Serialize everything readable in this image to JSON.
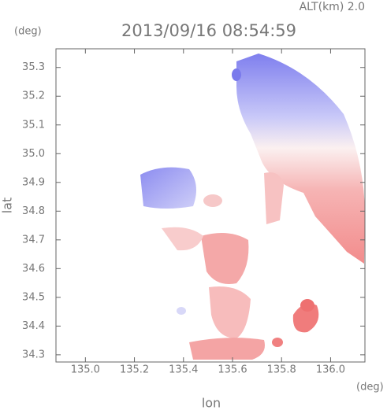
{
  "chart_data": {
    "type": "field",
    "title": "2013/09/16 08:54:59",
    "annotation": "ALT(km) 2.0",
    "x_label": "lon",
    "y_label": "lat",
    "x_unit": "(deg)",
    "y_unit": "(deg)",
    "xlim": [
      134.88,
      136.14
    ],
    "ylim": [
      34.275,
      35.365
    ],
    "xticks": [
      {
        "value": 135.0,
        "label": "135.0"
      },
      135.2,
      135.4,
      135.6,
      135.8,
      {
        "value": 136.0,
        "label": "136.0"
      }
    ],
    "yticks": [
      34.3,
      34.4,
      34.5,
      34.6,
      34.7,
      34.8,
      34.9,
      {
        "value": 35.0,
        "label": "35.0"
      },
      35.1,
      35.2,
      35.3
    ]
  }
}
